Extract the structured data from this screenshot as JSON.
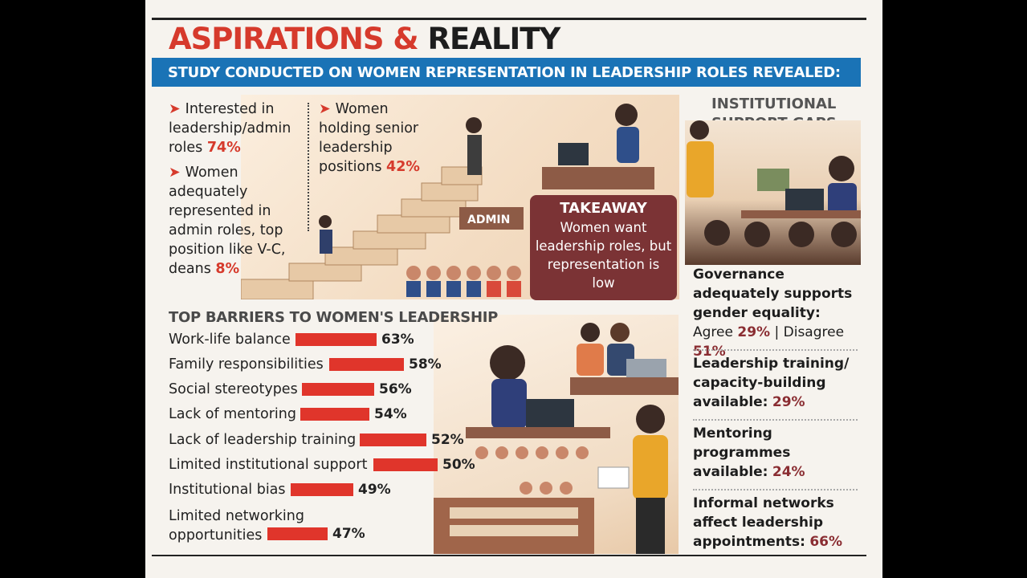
{
  "title": {
    "part1": "ASPIRATIONS &",
    "part2": "REALITY"
  },
  "banner": "STUDY CONDUCTED ON WOMEN REPRESENTATION IN LEADERSHIP ROLES REVEALED:",
  "facts": [
    {
      "text": "Interested in leadership/admin roles",
      "value": "74%"
    },
    {
      "text": "Women adequately represented in admin roles, top position like V-C, deans",
      "value": "8%"
    },
    {
      "text": "Women holding senior leadership positions",
      "value": "42%"
    }
  ],
  "illustration": {
    "sign": "ADMIN"
  },
  "takeaway": {
    "heading": "TAKEAWAY",
    "body": "Women want leadership roles, but representation is low"
  },
  "chart_data": {
    "type": "bar",
    "orientation": "horizontal",
    "title": "TOP BARRIERS TO WOMEN'S LEADERSHIP",
    "categories": [
      "Work-life balance",
      "Family responsibilities",
      "Social stereotypes",
      "Lack of mentoring",
      "Lack of leadership training",
      "Limited institutional support",
      "Institutional bias",
      "Limited networking opportunities"
    ],
    "values": [
      63,
      58,
      56,
      54,
      52,
      50,
      49,
      47
    ],
    "value_labels": [
      "63%",
      "58%",
      "56%",
      "54%",
      "52%",
      "50%",
      "49%",
      "47%"
    ],
    "unit": "%",
    "xlim": [
      0,
      100
    ],
    "color": "#e0352b"
  },
  "gaps": {
    "title": "INSTITUTIONAL SUPPORT GAPS",
    "items": [
      {
        "label": "Governance adequately supports gender equality:",
        "agree_label": "Agree",
        "agree": "29%",
        "sep": "|",
        "disagree_label": "Disagree",
        "disagree": "51%"
      },
      {
        "label": "Leadership training/ capacity-building available:",
        "value": "29%"
      },
      {
        "label": "Mentoring programmes available:",
        "value": "24%"
      },
      {
        "label": "Informal networks affect leadership appointments:",
        "value": "66%"
      }
    ]
  },
  "colors": {
    "red": "#d63a2c",
    "blue": "#1a73b6",
    "maroon": "#7b3335",
    "bar": "#e0352b"
  }
}
